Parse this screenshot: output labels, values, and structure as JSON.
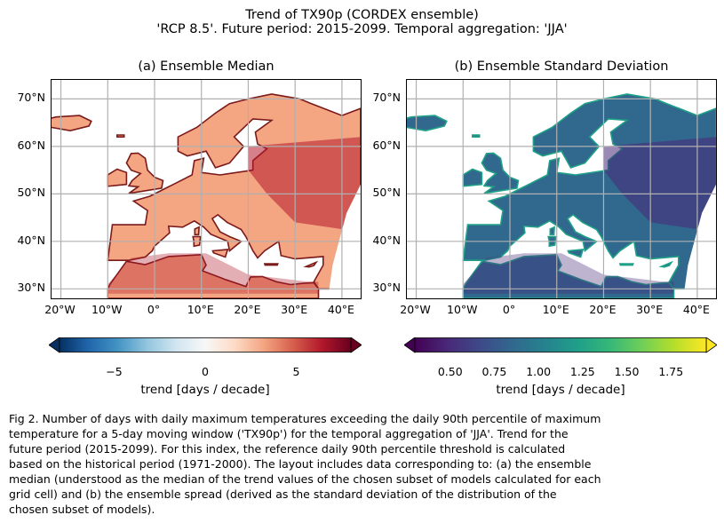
{
  "figure": {
    "title_line1": "Trend of TX90p (CORDEX ensemble)",
    "title_line2": "'RCP 8.5'. Future period: 2015-2099. Temporal aggregation: 'JJA'"
  },
  "panels": [
    {
      "title": "(a) Ensemble Median",
      "colormap": "RdBu_r",
      "colorbar": {
        "label": "trend [days / decade]",
        "ticks": [
          "−5",
          "0",
          "5"
        ],
        "range": [
          -8,
          8
        ],
        "extend": "both",
        "colors": [
          "#053061",
          "#2166ac",
          "#4393c3",
          "#92c5de",
          "#d1e5f0",
          "#f7f7f7",
          "#fddbc7",
          "#f4a582",
          "#d6604d",
          "#b2182b",
          "#67001f"
        ]
      }
    },
    {
      "title": "(b) Ensemble Standard Deviation",
      "colormap": "viridis",
      "colorbar": {
        "label": "trend [days / decade]",
        "ticks": [
          "0.50",
          "0.75",
          "1.00",
          "1.25",
          "1.50",
          "1.75"
        ],
        "range": [
          0.3,
          1.95
        ],
        "extend": "both",
        "colors": [
          "#440154",
          "#482878",
          "#3e4989",
          "#31688e",
          "#26828e",
          "#1f9e89",
          "#35b779",
          "#6ece58",
          "#b5de2b",
          "#fde725"
        ]
      }
    }
  ],
  "axes": {
    "lat_ticks": [
      "70°N",
      "60°N",
      "50°N",
      "40°N",
      "30°N"
    ],
    "lon_ticks": [
      "20°W",
      "10°W",
      "0°",
      "10°E",
      "20°E",
      "30°E",
      "40°E"
    ],
    "lat_range": [
      28,
      74
    ],
    "lon_range": [
      -22,
      44
    ],
    "grid": true
  },
  "caption": [
    "Fig 2. Number of days with daily maximum temperatures exceeding the daily 90th percentile of maximum",
    "temperature for a 5-day moving window ('TX90p') for the temporal aggregation of 'JJA'. Trend for the",
    "future period (2015-2099). For this index, the reference daily 90th percentile threshold is calculated",
    "based on the historical period (1971-2000). The layout includes data corresponding to: (a) the ensemble",
    "median (understood as the median of the trend values of the chosen subset of models calculated for each",
    "grid cell) and (b) the ensemble spread (derived as the standard deviation of the distribution of the",
    "chosen subset of models)."
  ]
}
